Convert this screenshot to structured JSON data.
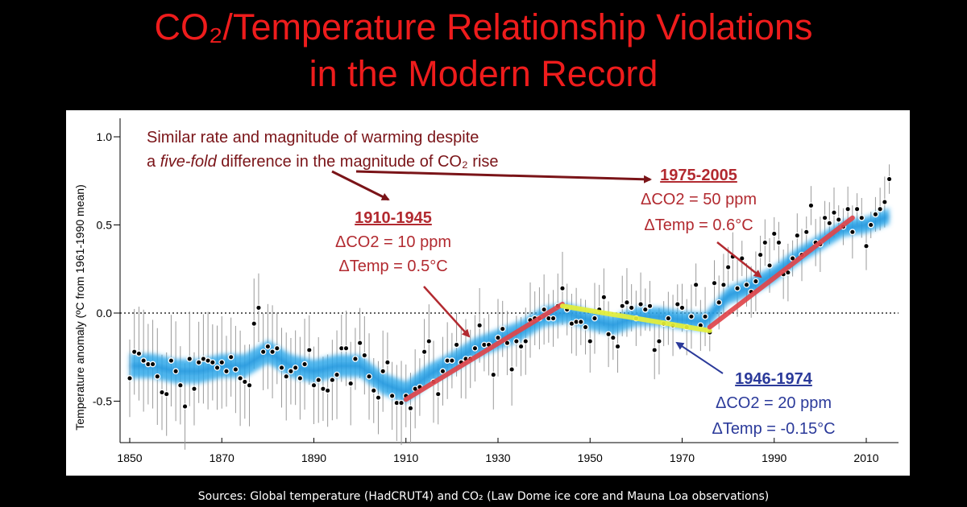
{
  "title": {
    "line1": "CO₂/Temperature Relationship Violations",
    "line2": "in the Modern Record"
  },
  "sources": "Sources: Global temperature (HadCRUT4) and CO₂ (Law Dome ice core and Mauna Loa observations)",
  "colors": {
    "title": "#ee1c1c",
    "background": "#000000",
    "panel": "#ffffff",
    "smooth_band": "#2ea8ea",
    "trend_1910_1945": "#e0464b",
    "trend_1946_1974": "#e6f03a",
    "trend_1975_2005": "#e0464b",
    "annotation_dark_red": "#7a1418",
    "annotation_red": "#b22a30",
    "annotation_blue": "#2b3a9a"
  },
  "chart_data": {
    "type": "scatter",
    "ylabel": "Temperature anomaly (ºC from 1961-1990 mean)",
    "xlabel": "",
    "xlim": [
      1848,
      2016
    ],
    "ylim": [
      -0.75,
      1.1
    ],
    "x_ticks": [
      1850,
      1870,
      1890,
      1910,
      1930,
      1950,
      1970,
      1990,
      2010
    ],
    "y_ticks": [
      {
        "value": 1.0,
        "label": "1.0"
      },
      {
        "value": 0.5,
        "label": "0.5"
      },
      {
        "value": 0.0,
        "label": "0.0"
      },
      {
        "value": -0.5,
        "label": "-0.5"
      }
    ],
    "zero_line": "dotted",
    "grid": false,
    "series": [
      {
        "x": [
          1850,
          1851,
          1852,
          1853,
          1854,
          1855,
          1856,
          1857,
          1858,
          1859,
          1860,
          1861,
          1862,
          1863,
          1864,
          1865,
          1866,
          1867,
          1868,
          1869,
          1870,
          1871,
          1872,
          1873,
          1874,
          1875,
          1876,
          1877,
          1878,
          1879,
          1880,
          1881,
          1882,
          1883,
          1884,
          1885,
          1886,
          1887,
          1888,
          1889,
          1890,
          1891,
          1892,
          1893,
          1894,
          1895,
          1896,
          1897,
          1898,
          1899,
          1900,
          1901,
          1902,
          1903,
          1904,
          1905,
          1906,
          1907,
          1908,
          1909,
          1910,
          1911,
          1912,
          1913,
          1914,
          1915,
          1916,
          1917,
          1918,
          1919,
          1920,
          1921,
          1922,
          1923,
          1924,
          1925,
          1926,
          1927,
          1928,
          1929,
          1930,
          1931,
          1932,
          1933,
          1934,
          1935,
          1936,
          1937,
          1938,
          1939,
          1940,
          1941,
          1942,
          1943,
          1944,
          1945,
          1946,
          1947,
          1948,
          1949,
          1950,
          1951,
          1952,
          1953,
          1954,
          1955,
          1956,
          1957,
          1958,
          1959,
          1960,
          1961,
          1962,
          1963,
          1964,
          1965,
          1966,
          1967,
          1968,
          1969,
          1970,
          1971,
          1972,
          1973,
          1974,
          1975,
          1976,
          1977,
          1978,
          1979,
          1980,
          1981,
          1982,
          1983,
          1984,
          1985,
          1986,
          1987,
          1988,
          1989,
          1990,
          1991,
          1992,
          1993,
          1994,
          1995,
          1996,
          1997,
          1998,
          1999,
          2000,
          2001,
          2002,
          2003,
          2004,
          2005,
          2006,
          2007,
          2008,
          2009,
          2010,
          2011,
          2012,
          2013,
          2014,
          2015
        ],
        "y": [
          -0.37,
          -0.22,
          -0.23,
          -0.27,
          -0.29,
          -0.29,
          -0.36,
          -0.45,
          -0.46,
          -0.27,
          -0.33,
          -0.41,
          -0.53,
          -0.26,
          -0.43,
          -0.28,
          -0.26,
          -0.27,
          -0.28,
          -0.31,
          -0.28,
          -0.33,
          -0.25,
          -0.32,
          -0.37,
          -0.39,
          -0.41,
          -0.06,
          0.03,
          -0.22,
          -0.19,
          -0.22,
          -0.2,
          -0.31,
          -0.36,
          -0.33,
          -0.31,
          -0.37,
          -0.29,
          -0.21,
          -0.41,
          -0.38,
          -0.43,
          -0.44,
          -0.38,
          -0.35,
          -0.2,
          -0.2,
          -0.4,
          -0.26,
          -0.17,
          -0.24,
          -0.36,
          -0.44,
          -0.48,
          -0.33,
          -0.28,
          -0.47,
          -0.51,
          -0.51,
          -0.47,
          -0.54,
          -0.43,
          -0.42,
          -0.22,
          -0.16,
          -0.39,
          -0.46,
          -0.33,
          -0.27,
          -0.27,
          -0.18,
          -0.28,
          -0.26,
          -0.26,
          -0.2,
          -0.07,
          -0.18,
          -0.18,
          -0.35,
          -0.14,
          -0.09,
          -0.17,
          -0.32,
          -0.16,
          -0.19,
          -0.16,
          -0.04,
          -0.03,
          -0.03,
          0.02,
          -0.03,
          -0.03,
          0.04,
          0.14,
          0.02,
          -0.06,
          -0.05,
          -0.05,
          -0.08,
          -0.16,
          -0.03,
          0.02,
          0.09,
          -0.12,
          -0.14,
          -0.19,
          0.04,
          0.06,
          0.03,
          -0.03,
          0.05,
          0.02,
          0.04,
          -0.21,
          -0.16,
          -0.06,
          -0.03,
          -0.07,
          0.05,
          0.03,
          -0.08,
          -0.02,
          0.16,
          -0.07,
          -0.02,
          -0.11,
          0.17,
          0.06,
          0.16,
          0.26,
          0.32,
          0.14,
          0.31,
          0.16,
          0.12,
          0.18,
          0.33,
          0.4,
          0.27,
          0.45,
          0.4,
          0.22,
          0.23,
          0.31,
          0.44,
          0.33,
          0.46,
          0.61,
          0.4,
          0.39,
          0.54,
          0.51,
          0.57,
          0.53,
          0.49,
          0.59,
          0.46,
          0.59,
          0.54,
          0.38,
          0.5,
          0.56,
          0.59,
          0.63,
          0.76
        ]
      }
    ],
    "smoothed": {
      "x": [
        1850,
        1855,
        1860,
        1865,
        1870,
        1875,
        1880,
        1885,
        1890,
        1895,
        1900,
        1905,
        1910,
        1915,
        1920,
        1925,
        1930,
        1935,
        1940,
        1945,
        1950,
        1955,
        1960,
        1965,
        1970,
        1975,
        1980,
        1985,
        1990,
        1995,
        2000,
        2005,
        2010,
        2015
      ],
      "y": [
        -0.3,
        -0.3,
        -0.33,
        -0.33,
        -0.3,
        -0.3,
        -0.22,
        -0.3,
        -0.33,
        -0.3,
        -0.3,
        -0.4,
        -0.45,
        -0.35,
        -0.28,
        -0.2,
        -0.15,
        -0.1,
        -0.02,
        0.0,
        -0.04,
        -0.07,
        -0.02,
        -0.02,
        -0.04,
        -0.05,
        0.1,
        0.15,
        0.22,
        0.32,
        0.4,
        0.48,
        0.5,
        0.55
      ]
    },
    "trend_lines": [
      {
        "x": [
          1910,
          1944
        ],
        "y": [
          -0.49,
          0.05
        ],
        "color": "#e0464b"
      },
      {
        "x": [
          1944,
          1976
        ],
        "y": [
          0.04,
          -0.1
        ],
        "color": "#e6f03a"
      },
      {
        "x": [
          1976,
          2007
        ],
        "y": [
          -0.08,
          0.54
        ],
        "color": "#e0464b"
      }
    ],
    "annotations": {
      "note_line1": "Similar rate and magnitude of warming despite",
      "note_line2_pre": "a ",
      "note_line2_italic": "five-fold",
      "note_line2_post": " difference in the magnitude of CO₂ rise",
      "p1": {
        "period": "1910-1945",
        "dco2": "ΔCO2 = 10 ppm",
        "dtemp": "ΔTemp = 0.5°C"
      },
      "p2": {
        "period": "1975-2005",
        "dco2": "ΔCO2 = 50 ppm",
        "dtemp": "ΔTemp = 0.6°C"
      },
      "p3": {
        "period": "1946-1974",
        "dco2": "ΔCO2 = 20 ppm",
        "dtemp": "ΔTemp = -0.15°C"
      }
    }
  }
}
